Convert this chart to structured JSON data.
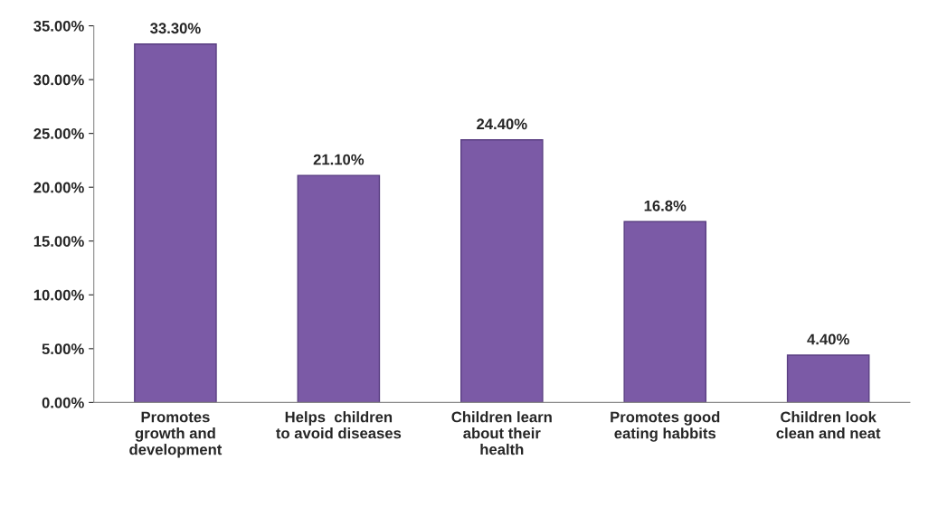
{
  "chart_data": {
    "type": "bar",
    "categories": [
      "Promotes\ngrowth and\ndevelopment",
      "Helps  children\nto avoid diseases",
      "Children learn\nabout their\nhealth",
      "Promotes good\neating habbits",
      "Children look\nclean and neat"
    ],
    "values": [
      33.3,
      21.1,
      24.4,
      16.8,
      4.4
    ],
    "value_labels": [
      "33.30%",
      "21.10%",
      "24.40%",
      "16.8%",
      "4.40%"
    ],
    "color": "#7b5aa6",
    "ylim": [
      0,
      35
    ],
    "yticks": [
      {
        "value": 0,
        "label": "0.00%"
      },
      {
        "value": 5,
        "label": "5.00%"
      },
      {
        "value": 10,
        "label": "10.00%"
      },
      {
        "value": 15,
        "label": "15.00%"
      },
      {
        "value": 20,
        "label": "20.00%"
      },
      {
        "value": 25,
        "label": "25.00%"
      },
      {
        "value": 30,
        "label": "30.00%"
      },
      {
        "value": 35,
        "label": "35.00%"
      }
    ],
    "grid": false
  }
}
